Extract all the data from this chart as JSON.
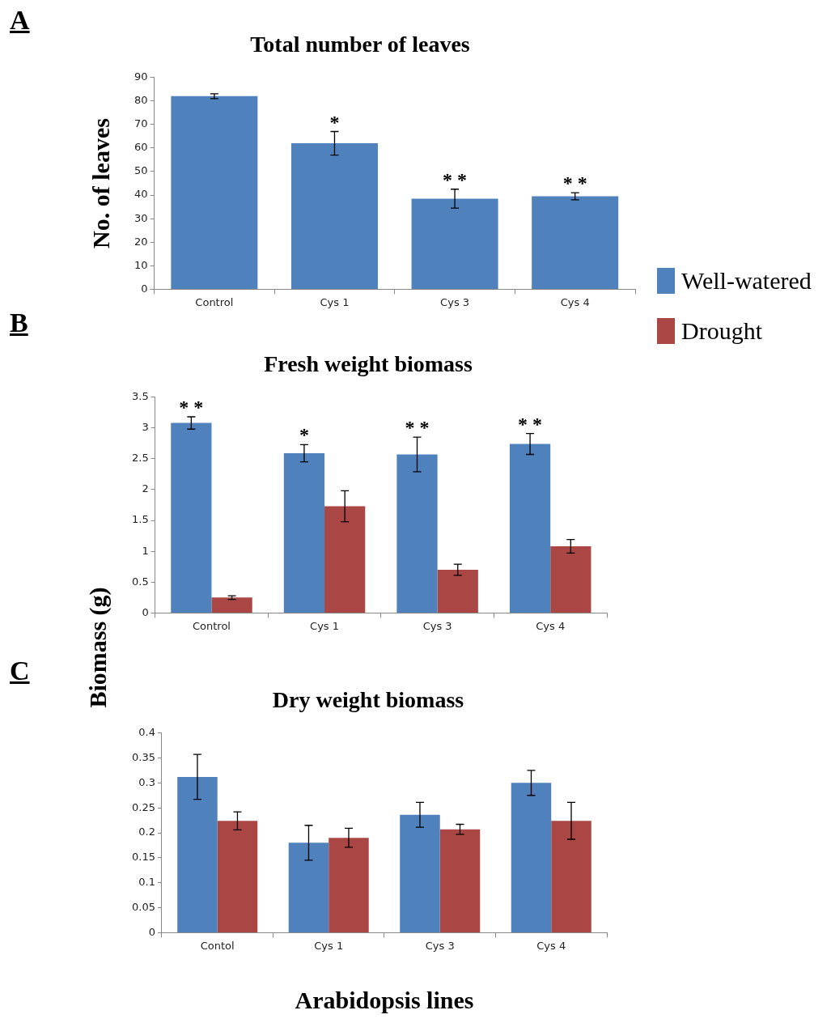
{
  "chart_data": [
    {
      "type": "bar",
      "title": "Total number of leaves",
      "ylabel": "No. of leaves",
      "categories": [
        "Control",
        "Cys 1",
        "Cys 3",
        "Cys 4"
      ],
      "series": [
        {
          "color": "#4f81bd",
          "values": [
            82,
            62,
            38.5,
            39.5
          ],
          "errors": [
            1,
            5,
            4,
            1.5
          ]
        }
      ],
      "ylim": [
        0,
        90
      ],
      "yticks": [
        0,
        10,
        20,
        30,
        40,
        50,
        60,
        70,
        80,
        90
      ],
      "annotations": [
        "A",
        {
          "text": "*",
          "x": "Cys 1",
          "y": 62
        },
        {
          "text": "* *",
          "x": "Cys 3",
          "y": 38.5
        },
        {
          "text": "* *",
          "x": "Cys 4",
          "y": 39.5
        }
      ]
    },
    {
      "type": "bar",
      "title": "Fresh weight biomass",
      "ylabel": "Biomass (g)",
      "categories": [
        "Control",
        "Cys 1",
        "Cys 3",
        "Cys 4"
      ],
      "series": [
        {
          "name": "Well-watered",
          "color": "#4f81bd",
          "values": [
            3.08,
            2.59,
            2.57,
            2.74
          ],
          "errors": [
            0.1,
            0.14,
            0.28,
            0.17
          ]
        },
        {
          "name": "Drought",
          "color": "#aa4643",
          "values": [
            0.25,
            1.73,
            0.7,
            1.08
          ],
          "errors": [
            0.03,
            0.25,
            0.09,
            0.11
          ]
        }
      ],
      "ylim": [
        0,
        3.5
      ],
      "yticks": [
        0,
        0.5,
        1,
        1.5,
        2,
        2.5,
        3,
        3.5
      ],
      "legend": "top right",
      "annotations": [
        "B",
        {
          "text": "* *",
          "x": "Control",
          "y": 3.08
        },
        {
          "text": "*",
          "x": "Cys 1",
          "y": 2.59
        },
        {
          "text": "* *",
          "x": "Cys 3",
          "y": 2.57
        },
        {
          "text": "* *",
          "x": "Cys 4",
          "y": 2.74
        }
      ]
    },
    {
      "type": "bar",
      "title": "Dry weight biomass",
      "xlabel": "Arabidopsis lines",
      "categories": [
        "Contol",
        "Cys 1",
        "Cys 3",
        "Cys 4"
      ],
      "series": [
        {
          "color": "#4f81bd",
          "values": [
            0.312,
            0.18,
            0.236,
            0.3
          ],
          "errors": [
            0.045,
            0.035,
            0.025,
            0.025
          ]
        },
        {
          "color": "#aa4643",
          "values": [
            0.224,
            0.19,
            0.207,
            0.224
          ],
          "errors": [
            0.018,
            0.019,
            0.01,
            0.037
          ]
        }
      ],
      "ylim": [
        0,
        0.4
      ],
      "yticks": [
        0,
        0.05,
        0.1,
        0.15,
        0.2,
        0.25,
        0.3,
        0.35,
        0.4
      ],
      "annotations": [
        "C"
      ]
    }
  ]
}
